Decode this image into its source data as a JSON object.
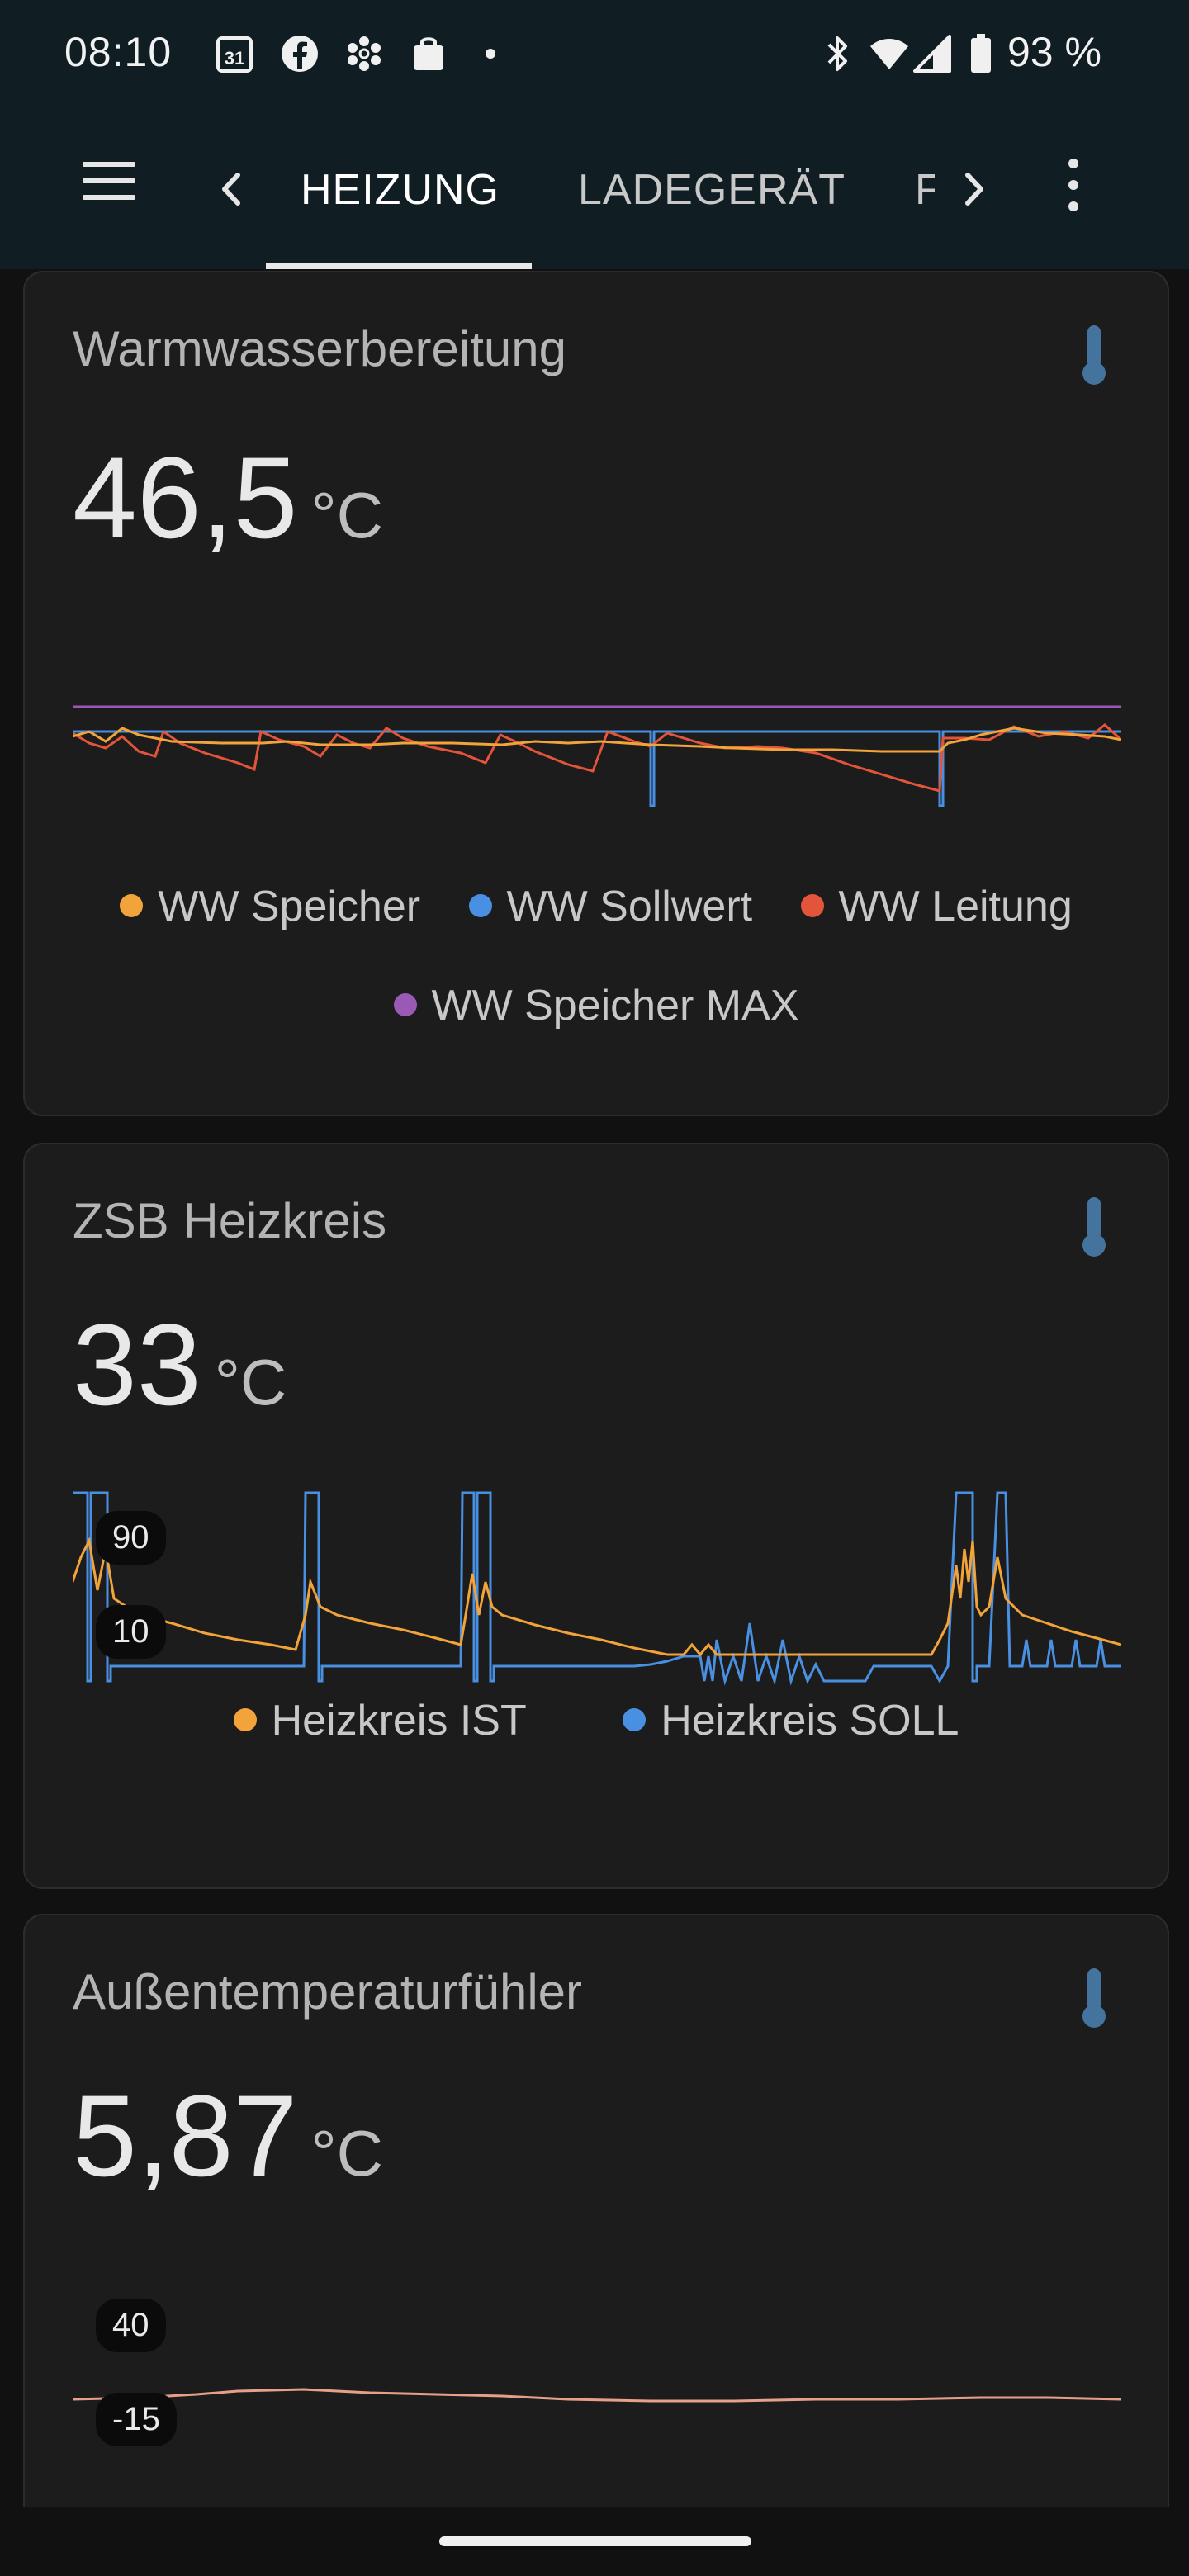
{
  "status_bar": {
    "time": "08:10",
    "calendar_day": "31",
    "battery_percent": "93 %",
    "notification_icons": [
      "calendar-icon",
      "facebook-icon",
      "fan-icon",
      "shopping-bag-icon",
      "dot-icon"
    ],
    "system_icons": [
      "bluetooth-icon",
      "wifi-icon",
      "signal-icon",
      "battery-icon"
    ]
  },
  "header": {
    "tabs": [
      {
        "label": "HEIZUNG",
        "active": true
      },
      {
        "label": "LADEGERÄT",
        "active": false
      },
      {
        "label": "F",
        "active": false
      }
    ]
  },
  "cards": [
    {
      "title": "Warmwasserbereitung",
      "value": "46,5",
      "unit": "°C",
      "icon": "thermometer-icon",
      "legend": [
        {
          "label": "WW Speicher",
          "color": "#f2a33a"
        },
        {
          "label": "WW Sollwert",
          "color": "#4a90e2"
        },
        {
          "label": "WW Leitung",
          "color": "#e2553a"
        },
        {
          "label": "WW Speicher MAX",
          "color": "#9b59b6"
        }
      ]
    },
    {
      "title": "ZSB Heizkreis",
      "value": "33",
      "unit": "°C",
      "icon": "thermometer-icon",
      "axis_labels": [
        "90",
        "10"
      ],
      "legend": [
        {
          "label": "Heizkreis IST",
          "color": "#f2a33a"
        },
        {
          "label": "Heizkreis SOLL",
          "color": "#4a90e2"
        }
      ]
    },
    {
      "title": "Außentemperaturfühler",
      "value": "5,87",
      "unit": "°C",
      "icon": "thermometer-icon",
      "axis_labels": [
        "40",
        "-15"
      ],
      "line_color": "#e6a08a"
    }
  ]
}
